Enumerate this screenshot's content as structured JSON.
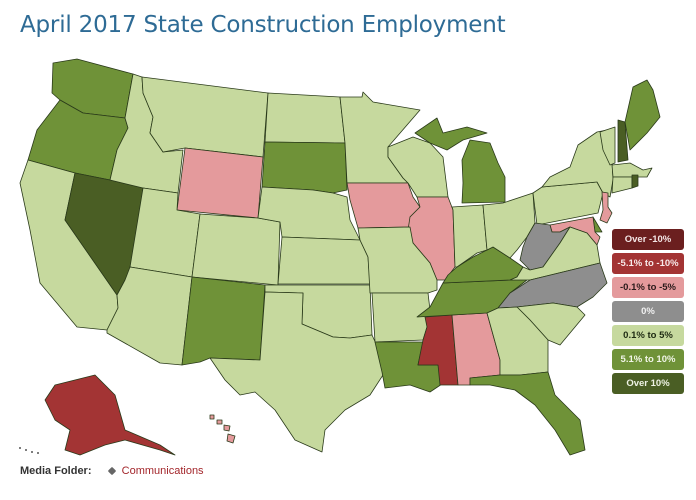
{
  "title": "April 2017 State Construction Employment",
  "legend": [
    {
      "key": "over_neg10",
      "label": "Over -10%",
      "color": "#6b1f1f",
      "text_color": "#f3e6e6"
    },
    {
      "key": "neg5_neg10",
      "label": "-5.1% to -10%",
      "color": "#a33434",
      "text_color": "#f7eaea"
    },
    {
      "key": "neg0_neg5",
      "label": "-0.1% to -5%",
      "color": "#e49a9c",
      "text_color": "#2a1a1a"
    },
    {
      "key": "zero",
      "label": "0%",
      "color": "#8e8e8e",
      "text_color": "#f2f2f2"
    },
    {
      "key": "pos0_5",
      "label": "0.1% to 5%",
      "color": "#c6d99e",
      "text_color": "#1e2a12"
    },
    {
      "key": "pos5_10",
      "label": "5.1% to 10%",
      "color": "#6f9238",
      "text_color": "#f1f5e8"
    },
    {
      "key": "over_10",
      "label": "Over 10%",
      "color": "#4a5e24",
      "text_color": "#eef2e4"
    }
  ],
  "state_categories": {
    "over_10": [
      "NV",
      "NH",
      "RI"
    ],
    "pos5_10": [
      "WA",
      "OR",
      "SD",
      "NM",
      "MI",
      "MI_UP",
      "KY",
      "TN",
      "LA",
      "FL",
      "ME",
      "DE"
    ],
    "neg0_neg5": [
      "WY",
      "IA",
      "IL",
      "NJ",
      "MD",
      "AL",
      "HI"
    ],
    "neg5_neg10": [
      "MS",
      "AK"
    ],
    "zero": [
      "WV",
      "NC"
    ],
    "pos0_5": [
      "CA",
      "ID",
      "MT",
      "UT",
      "CO",
      "AZ",
      "ND",
      "NE",
      "KS",
      "OK",
      "TX",
      "MN",
      "WI",
      "MO",
      "AR",
      "IN",
      "OH",
      "PA",
      "NY",
      "VT",
      "MA",
      "CT",
      "VA",
      "SC",
      "GA"
    ]
  },
  "footer": {
    "label": "Media Folder:",
    "link": "Communications",
    "tag_icon": "tag-icon"
  }
}
